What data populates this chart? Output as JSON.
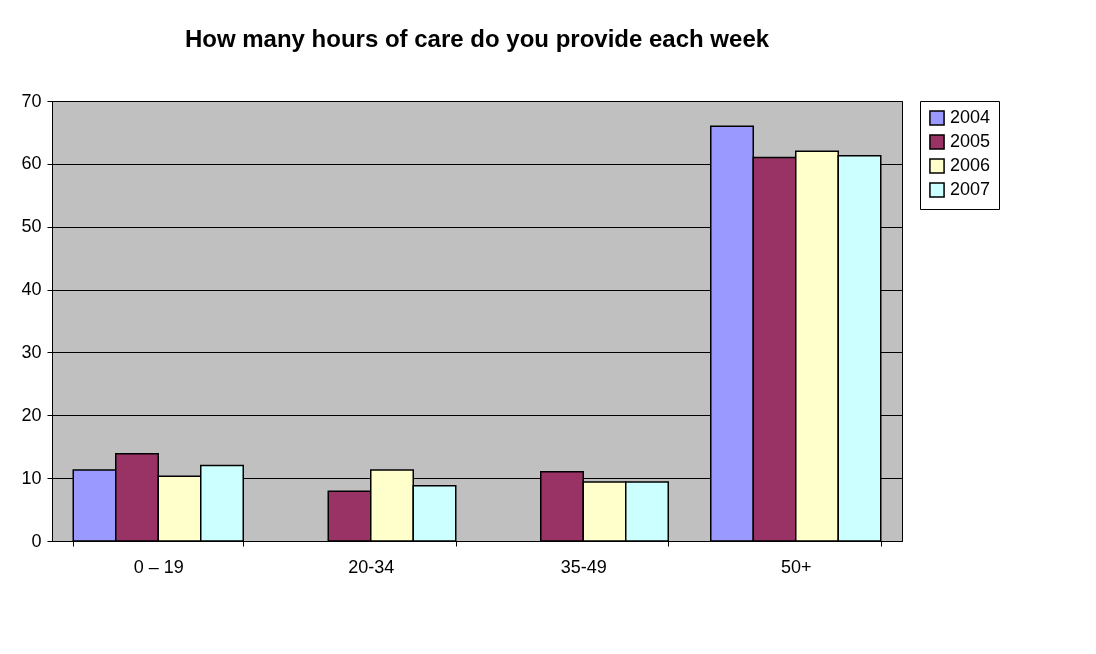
{
  "chart_data": {
    "type": "bar",
    "title": "How many hours of care do you provide each week",
    "categories": [
      "0 – 19",
      "20-34",
      "35-49",
      "50+"
    ],
    "series": [
      {
        "name": "2004",
        "color": "#9999ff",
        "values": [
          11.3,
          null,
          null,
          66.0
        ]
      },
      {
        "name": "2005",
        "color": "#993366",
        "values": [
          13.9,
          7.9,
          11.0,
          61.0
        ]
      },
      {
        "name": "2006",
        "color": "#ffffcc",
        "values": [
          10.3,
          11.3,
          9.4,
          62.0
        ]
      },
      {
        "name": "2007",
        "color": "#ccffff",
        "values": [
          12.0,
          8.8,
          9.4,
          61.3
        ]
      }
    ],
    "ylim": [
      0,
      70
    ],
    "yticks": [
      0,
      10,
      20,
      30,
      40,
      50,
      60,
      70
    ],
    "grid": "y",
    "legend": "right"
  }
}
